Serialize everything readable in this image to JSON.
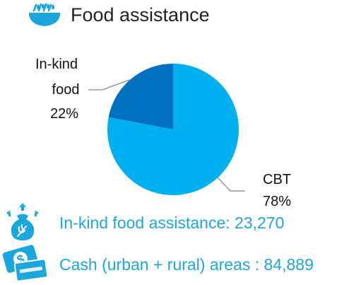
{
  "header": {
    "title": "Food assistance",
    "icon": "food-bowl-icon",
    "icon_color": "#1ba7de"
  },
  "chart_data": {
    "type": "pie",
    "slices": [
      {
        "label": "CBT",
        "value": 78,
        "percent_label": "78%",
        "color": "#00b0f0"
      },
      {
        "label_lines": [
          "In-kind",
          "food"
        ],
        "value": 22,
        "percent_label": "22%",
        "color": "#0070c0"
      }
    ]
  },
  "stats": [
    {
      "text": "In-kind food assistance: 23,270",
      "icon": "food-sack-icon",
      "color": "#1ba7de"
    },
    {
      "text": "Cash (urban + rural) areas : 84,889",
      "icon": "cash-card-icon",
      "color": "#1ba7de"
    }
  ]
}
